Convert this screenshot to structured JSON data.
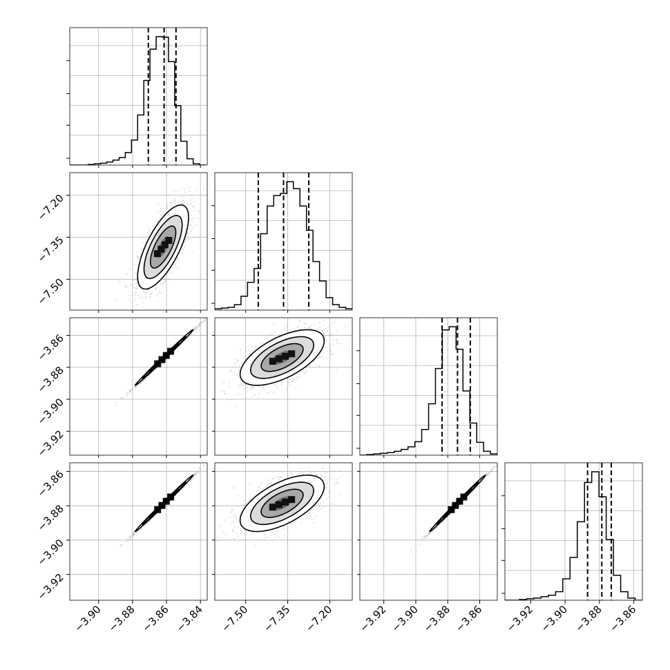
{
  "chart_data": {
    "type": "corner",
    "title": "",
    "parameters": [
      "",
      "",
      "",
      ""
    ],
    "axis_ranges": [
      [
        -3.917,
        -3.836
      ],
      [
        -7.61,
        -7.12
      ],
      [
        -3.935,
        -3.849
      ],
      [
        -3.935,
        -3.855
      ]
    ],
    "tick_labels": [
      [
        "−3.90",
        "−3.88",
        "−3.86",
        "−3.84"
      ],
      [
        "−7.50",
        "−7.35",
        "−7.20"
      ],
      [
        "−3.92",
        "−3.90",
        "−3.88",
        "−3.86"
      ],
      [
        "−3.92",
        "−3.90",
        "−3.88",
        "−3.86"
      ]
    ],
    "quantiles": [
      [
        -3.8707,
        -3.8614,
        -3.8544
      ],
      [
        -7.455,
        -7.365,
        -7.275
      ],
      [
        -3.8836,
        -3.8739,
        -3.8659
      ],
      [
        -3.8869,
        -3.8786,
        -3.8731
      ]
    ],
    "histograms": [
      {
        "bin_edges_range": [
          -3.917,
          -3.837
        ],
        "counts": [
          0,
          0,
          0,
          1,
          2,
          3,
          5,
          8,
          12,
          20,
          40,
          80,
          135,
          185,
          205,
          204,
          165,
          95,
          38,
          10,
          2,
          0
        ]
      },
      {
        "bin_edges_range": [
          -7.61,
          -7.12
        ],
        "counts": [
          2,
          3,
          4,
          8,
          20,
          40,
          60,
          110,
          150,
          165,
          168,
          185,
          175,
          150,
          115,
          70,
          42,
          18,
          8,
          4,
          2
        ]
      },
      {
        "bin_edges_range": [
          -3.935,
          -3.849
        ],
        "counts": [
          0,
          1,
          2,
          3,
          4,
          6,
          9,
          13,
          21,
          40,
          80,
          135,
          195,
          200,
          165,
          100,
          50,
          20,
          6,
          2
        ]
      },
      {
        "bin_edges_range": [
          -3.935,
          -3.855
        ],
        "counts": [
          0,
          0,
          1,
          2,
          3,
          5,
          7,
          12,
          30,
          60,
          110,
          165,
          180,
          145,
          85,
          35,
          12,
          3,
          0
        ]
      }
    ],
    "pair_distributions": [
      {
        "x_param": 0,
        "y_param": 1,
        "mean": [
          -3.862,
          -7.385
        ],
        "std": [
          0.0075,
          0.075
        ],
        "correlation": 0.7
      },
      {
        "x_param": 0,
        "y_param": 2,
        "mean": [
          -3.8614,
          -3.8739
        ],
        "std": [
          0.0085,
          0.0087
        ],
        "correlation": 0.997
      },
      {
        "x_param": 1,
        "y_param": 2,
        "mean": [
          -7.37,
          -3.8739
        ],
        "std": [
          0.075,
          0.0087
        ],
        "correlation": 0.6
      },
      {
        "x_param": 0,
        "y_param": 3,
        "mean": [
          -3.8614,
          -3.8786
        ],
        "std": [
          0.0085,
          0.0082
        ],
        "correlation": 0.997
      },
      {
        "x_param": 1,
        "y_param": 3,
        "mean": [
          -7.37,
          -3.8786
        ],
        "std": [
          0.075,
          0.0082
        ],
        "correlation": 0.6
      },
      {
        "x_param": 2,
        "y_param": 3,
        "mean": [
          -3.8739,
          -3.8786
        ],
        "std": [
          0.0087,
          0.0082
        ],
        "correlation": 0.997
      }
    ],
    "contour_levels_sigma": [
      0.5,
      1.0,
      1.5,
      2.0
    ],
    "grid": true,
    "colors": {
      "points": "#9a9a9a",
      "line": "#000000",
      "grid": "#b0b0b0"
    }
  }
}
